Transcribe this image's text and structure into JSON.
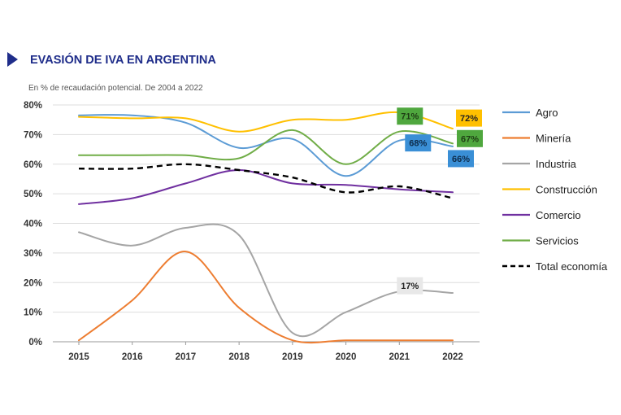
{
  "chart_data": {
    "type": "line",
    "title": "EVASIÓN DE IVA EN ARGENTINA",
    "subtitle": "En % de recaudación potencial. De 2004 a 2022",
    "x": [
      "2015",
      "2016",
      "2017",
      "2018",
      "2019",
      "2020",
      "2021",
      "2022"
    ],
    "y_ticks": [
      "0%",
      "10%",
      "20%",
      "30%",
      "40%",
      "50%",
      "60%",
      "70%",
      "80%"
    ],
    "ylim": [
      0,
      80
    ],
    "grid": true,
    "legend_position": "right",
    "series": [
      {
        "name": "Agro",
        "color": "#5b9bd5",
        "style": "solid",
        "values": [
          76.5,
          76.5,
          74,
          65.5,
          68.5,
          56,
          68,
          66
        ]
      },
      {
        "name": "Minería",
        "color": "#ed7d31",
        "style": "solid",
        "values": [
          0.5,
          14,
          30.5,
          11.5,
          0.5,
          0.5,
          0.5,
          0.5
        ]
      },
      {
        "name": "Industria",
        "color": "#a5a5a5",
        "style": "solid",
        "values": [
          37,
          32.5,
          38.5,
          36,
          3,
          10,
          17,
          16.5
        ]
      },
      {
        "name": "Construcción",
        "color": "#ffc000",
        "style": "solid",
        "values": [
          76,
          75.5,
          75.5,
          71,
          75,
          75,
          77.5,
          72
        ]
      },
      {
        "name": "Comercio",
        "color": "#7030a0",
        "style": "solid",
        "values": [
          46.5,
          48.5,
          53.5,
          58,
          53.5,
          53,
          51.5,
          50.5
        ]
      },
      {
        "name": "Servicios",
        "color": "#70ad47",
        "style": "solid",
        "values": [
          63,
          63,
          63,
          62,
          71.5,
          60,
          71,
          67
        ]
      },
      {
        "name": "Total economía",
        "color": "#000000",
        "style": "dashed",
        "values": [
          58.5,
          58.5,
          60,
          58,
          55.5,
          50.5,
          52.5,
          48.5
        ]
      }
    ],
    "annotations": [
      {
        "text": "72%",
        "series": "Construcción",
        "x": "2022",
        "bg": "#ffc000",
        "fg": "#222222"
      },
      {
        "text": "71%",
        "series": "Servicios",
        "x": "2021",
        "bg": "#4fa73e",
        "fg": "#1e3d14"
      },
      {
        "text": "67%",
        "series": "Servicios",
        "x": "2022",
        "bg": "#4fa73e",
        "fg": "#1e3d14"
      },
      {
        "text": "68%",
        "series": "Agro",
        "x": "2021",
        "bg": "#3a8fd6",
        "fg": "#0d2b4a"
      },
      {
        "text": "66%",
        "series": "Agro",
        "x": "2022",
        "bg": "#3a8fd6",
        "fg": "#0d2b4a"
      },
      {
        "text": "17%",
        "series": "Industria",
        "x": "2021",
        "bg": "#e8e8e8",
        "fg": "#222222"
      }
    ],
    "title_color": "#1f2d8a"
  }
}
